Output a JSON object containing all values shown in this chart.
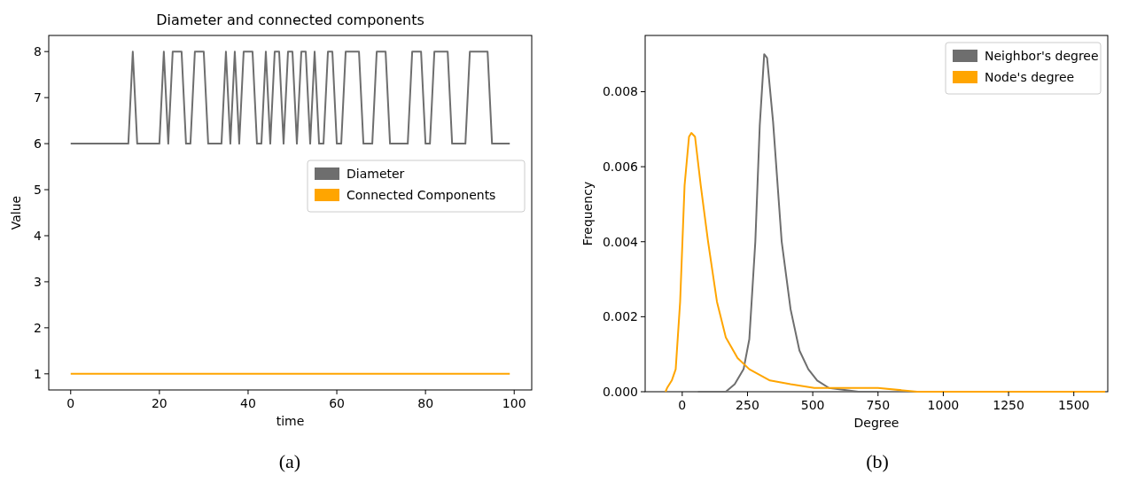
{
  "chart_data": [
    {
      "type": "line",
      "title": "Diameter and connected components",
      "xlabel": "time",
      "ylabel": "Value",
      "annotations": [
        "(a)"
      ],
      "x": [
        0,
        1,
        2,
        3,
        4,
        5,
        6,
        7,
        8,
        9,
        10,
        11,
        12,
        13,
        14,
        15,
        16,
        17,
        18,
        19,
        20,
        21,
        22,
        23,
        24,
        25,
        26,
        27,
        28,
        29,
        30,
        31,
        32,
        33,
        34,
        35,
        36,
        37,
        38,
        39,
        40,
        41,
        42,
        43,
        44,
        45,
        46,
        47,
        48,
        49,
        50,
        51,
        52,
        53,
        54,
        55,
        56,
        57,
        58,
        59,
        60,
        61,
        62,
        63,
        64,
        65,
        66,
        67,
        68,
        69,
        70,
        71,
        72,
        73,
        74,
        75,
        76,
        77,
        78,
        79,
        80,
        81,
        82,
        83,
        84,
        85,
        86,
        87,
        88,
        89,
        90,
        91,
        92,
        93,
        94,
        95,
        96,
        97,
        98,
        99
      ],
      "series": [
        {
          "name": "Diameter",
          "color": "#6e6e6e",
          "values": [
            6,
            6,
            6,
            6,
            6,
            6,
            6,
            6,
            6,
            6,
            6,
            6,
            6,
            6,
            8,
            6,
            6,
            6,
            6,
            6,
            6,
            8,
            6,
            8,
            8,
            8,
            6,
            6,
            8,
            8,
            8,
            6,
            6,
            6,
            6,
            8,
            6,
            8,
            6,
            8,
            8,
            8,
            6,
            6,
            8,
            6,
            8,
            8,
            6,
            8,
            8,
            6,
            8,
            8,
            6,
            8,
            6,
            6,
            8,
            8,
            6,
            6,
            8,
            8,
            8,
            8,
            6,
            6,
            6,
            8,
            8,
            8,
            6,
            6,
            6,
            6,
            6,
            8,
            8,
            8,
            6,
            6,
            8,
            8,
            8,
            8,
            6,
            6,
            6,
            6,
            8,
            8,
            8,
            8,
            8,
            6,
            6,
            6,
            6,
            6
          ]
        },
        {
          "name": "Connected Components",
          "color": "#ffa500",
          "values": [
            1,
            1,
            1,
            1,
            1,
            1,
            1,
            1,
            1,
            1,
            1,
            1,
            1,
            1,
            1,
            1,
            1,
            1,
            1,
            1,
            1,
            1,
            1,
            1,
            1,
            1,
            1,
            1,
            1,
            1,
            1,
            1,
            1,
            1,
            1,
            1,
            1,
            1,
            1,
            1,
            1,
            1,
            1,
            1,
            1,
            1,
            1,
            1,
            1,
            1,
            1,
            1,
            1,
            1,
            1,
            1,
            1,
            1,
            1,
            1,
            1,
            1,
            1,
            1,
            1,
            1,
            1,
            1,
            1,
            1,
            1,
            1,
            1,
            1,
            1,
            1,
            1,
            1,
            1,
            1,
            1,
            1,
            1,
            1,
            1,
            1,
            1,
            1,
            1,
            1,
            1,
            1,
            1,
            1,
            1,
            1,
            1,
            1,
            1,
            1
          ]
        }
      ],
      "xlim": [
        -4.95,
        103.95
      ],
      "xticks": [
        0,
        20,
        40,
        60,
        80,
        100
      ],
      "ylim": [
        0.65,
        8.35
      ],
      "yticks": [
        1,
        2,
        3,
        4,
        5,
        6,
        7,
        8
      ],
      "legend": "center right",
      "grid": false
    },
    {
      "type": "line",
      "xlabel": "Degree",
      "ylabel": "Frequency",
      "annotations": [
        "(b)"
      ],
      "series": [
        {
          "name": "Neighbor's degree",
          "color": "#6e6e6e",
          "x": [
            60,
            167,
            201,
            235,
            257,
            280,
            297,
            314,
            325,
            348,
            381,
            415,
            449,
            483,
            517,
            562,
            675,
            750
          ],
          "values": [
            0,
            0,
            0.0002,
            0.0006,
            0.0014,
            0.004,
            0.0071,
            0.009,
            0.0089,
            0.0072,
            0.004,
            0.0022,
            0.0011,
            0.0006,
            0.0003,
            0.0001,
            0,
            0
          ]
        },
        {
          "name": "Node's degree",
          "color": "#ffa500",
          "x": [
            -64,
            -58,
            -40,
            -25,
            -8,
            9,
            26,
            35,
            49,
            71,
            99,
            133,
            167,
            212,
            257,
            336,
            415,
            506,
            600,
            750,
            900,
            1100,
            1300,
            1620
          ],
          "values": [
            0,
            0.0001,
            0.0003,
            0.0006,
            0.0024,
            0.0055,
            0.0068,
            0.0069,
            0.0068,
            0.0055,
            0.004,
            0.0024,
            0.00145,
            0.0009,
            0.0006,
            0.0003,
            0.0002,
            0.0001,
            0.0001,
            0.0001,
            0,
            0,
            0,
            0
          ]
        }
      ],
      "xlim": [
        -142,
        1630
      ],
      "xticks": [
        0,
        250,
        500,
        750,
        1000,
        1250,
        1500
      ],
      "ylim": [
        0,
        0.0095
      ],
      "yticks": [
        {
          "value": 0,
          "label": "0.000"
        },
        {
          "value": 0.002,
          "label": "0.002"
        },
        {
          "value": 0.004,
          "label": "0.004"
        },
        {
          "value": 0.006,
          "label": "0.006"
        },
        {
          "value": 0.008,
          "label": "0.008"
        }
      ],
      "legend": "top right",
      "grid": false
    }
  ]
}
